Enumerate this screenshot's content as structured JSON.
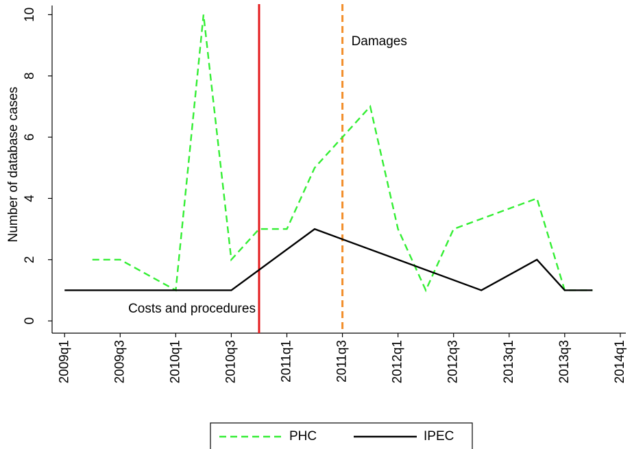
{
  "chart_data": {
    "type": "line",
    "y_label": "Number of database cases",
    "series": [
      {
        "name": "PHC",
        "color": "#33ee33",
        "dashed": true,
        "x": [
          197,
          198,
          200,
          201,
          202,
          203,
          204,
          205,
          206,
          207,
          208,
          209,
          210,
          213,
          214,
          215
        ],
        "values": [
          2,
          2,
          1,
          10,
          2,
          3,
          3,
          5,
          6,
          7,
          3,
          1,
          3,
          4,
          1,
          1
        ]
      },
      {
        "name": "IPEC",
        "color": "#000000",
        "dashed": false,
        "x": [
          196,
          202,
          205,
          211,
          213,
          214,
          215
        ],
        "values": [
          1,
          1,
          3,
          1,
          2,
          1,
          1
        ]
      }
    ],
    "vlines": [
      {
        "x": 203,
        "color": "#e41a1c",
        "dashed": false,
        "label": "Costs and procedures"
      },
      {
        "x": 206,
        "color": "#f28e2b",
        "dashed": true,
        "label": "Damages"
      }
    ],
    "xlim": [
      195.55,
      216.2
    ],
    "xticks": [
      {
        "value": 196,
        "label": "2009q1"
      },
      {
        "value": 198,
        "label": "2009q3"
      },
      {
        "value": 200,
        "label": "2010q1"
      },
      {
        "value": 202,
        "label": "2010q3"
      },
      {
        "value": 204,
        "label": "2011q1"
      },
      {
        "value": 206,
        "label": "2011q3"
      },
      {
        "value": 208,
        "label": "2012q1"
      },
      {
        "value": 210,
        "label": "2012q3"
      },
      {
        "value": 212,
        "label": "2013q1"
      },
      {
        "value": 214,
        "label": "2013q3"
      },
      {
        "value": 216,
        "label": "2014q1"
      }
    ],
    "ylim": [
      -0.4,
      10.3
    ],
    "yticks": [
      0,
      2,
      4,
      6,
      8,
      10
    ],
    "legend": "bottom"
  }
}
